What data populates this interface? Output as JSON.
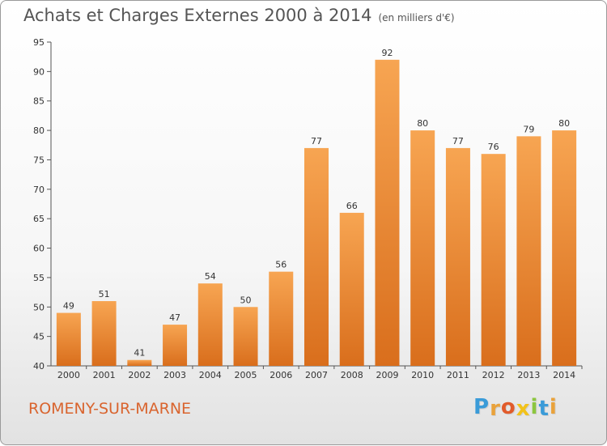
{
  "chart_data": {
    "type": "bar",
    "title": "Achats et Charges Externes 2000 à 2014",
    "unit": "(en milliers d'€)",
    "categories": [
      "2000",
      "2001",
      "2002",
      "2003",
      "2004",
      "2005",
      "2006",
      "2007",
      "2008",
      "2009",
      "2010",
      "2011",
      "2012",
      "2013",
      "2014"
    ],
    "values": [
      49,
      51,
      41,
      47,
      54,
      50,
      56,
      77,
      66,
      92,
      80,
      77,
      76,
      79,
      80
    ],
    "ylim": [
      40,
      95
    ],
    "yticks": [
      40,
      45,
      50,
      55,
      60,
      65,
      70,
      75,
      80,
      85,
      90,
      95
    ],
    "grid": false,
    "bar_color": "#f0913a"
  },
  "location": "ROMENY-SUR-MARNE",
  "logo": {
    "letters": [
      "P",
      "r",
      "o",
      "x",
      "i",
      "t",
      "i"
    ],
    "colors": [
      "#3a9bd8",
      "#e9a23b",
      "#e15b2b",
      "#f2c21a",
      "#8cc63f",
      "#3a9bd8",
      "#e9a23b"
    ]
  }
}
